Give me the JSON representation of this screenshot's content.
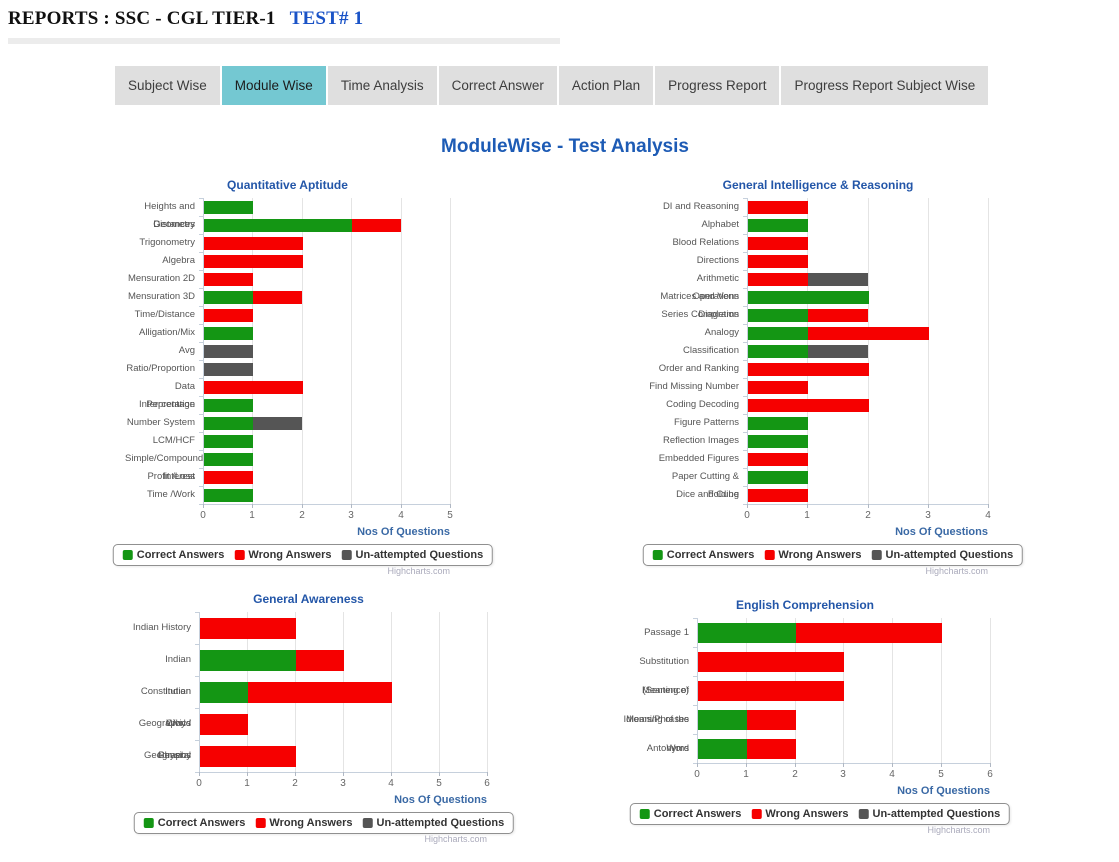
{
  "header": {
    "title": "REPORTS : SSC - CGL TIER-1",
    "test_label": "TEST# 1"
  },
  "tabs": [
    {
      "label": "Subject Wise",
      "active": false
    },
    {
      "label": "Module Wise",
      "active": true
    },
    {
      "label": "Time Analysis",
      "active": false
    },
    {
      "label": "Correct Answer",
      "active": false
    },
    {
      "label": "Action Plan",
      "active": false
    },
    {
      "label": "Progress Report",
      "active": false
    },
    {
      "label": "Progress Report Subject Wise",
      "active": false
    }
  ],
  "page_title": "ModuleWise - Test Analysis",
  "axis_label": "Nos Of Questions",
  "credit": "Highcharts.com",
  "colors": {
    "correct": "#149614",
    "wrong": "#f60000",
    "unattempted": "#555555",
    "accent_blue": "#2356a8",
    "tab_active": "#74c8d2"
  },
  "legend_labels": [
    "Correct Answers",
    "Wrong Answers",
    "Un-attempted Questions"
  ],
  "chart_data": [
    {
      "type": "bar",
      "orientation": "horizontal-stacked",
      "title": "Quantitative Aptitude",
      "xlabel": "Nos Of Questions",
      "xlim": [
        0,
        5
      ],
      "grid": true,
      "legend_position": "bottom",
      "categories": [
        "Heights and Distances",
        "Geometry",
        "Trigonometry",
        "Algebra",
        "Mensuration 2D",
        "Mensuration 3D",
        "Time/Distance",
        "Alligation/Mix",
        "Avg",
        "Ratio/Proportion",
        "Data Interpretation",
        "Percentage",
        "Number System",
        "LCM/HCF",
        "Simple/Compound Interest",
        "Profit /Loss",
        "Time /Work"
      ],
      "series": [
        {
          "name": "Correct Answers",
          "color_key": "correct",
          "values": [
            1,
            3,
            0,
            0,
            0,
            1,
            0,
            1,
            0,
            0,
            0,
            1,
            1,
            1,
            1,
            0,
            1
          ]
        },
        {
          "name": "Wrong Answers",
          "color_key": "wrong",
          "values": [
            0,
            1,
            2,
            2,
            1,
            1,
            1,
            0,
            0,
            0,
            2,
            0,
            0,
            0,
            0,
            1,
            0
          ]
        },
        {
          "name": "Un-attempted Questions",
          "color_key": "unattempted",
          "values": [
            0,
            0,
            0,
            0,
            0,
            0,
            0,
            0,
            1,
            1,
            0,
            0,
            1,
            0,
            0,
            0,
            0
          ]
        }
      ]
    },
    {
      "type": "bar",
      "orientation": "horizontal-stacked",
      "title": "General Intelligence & Reasoning",
      "xlabel": "Nos Of Questions",
      "xlim": [
        0,
        4
      ],
      "grid": true,
      "legend_position": "bottom",
      "categories": [
        "DI and Reasoning",
        "Alphabet",
        "Blood Relations",
        "Directions",
        "Arithmetic Operations",
        "Matrices and Venn Diagrams",
        "Series Completion",
        "Analogy",
        "Classification",
        "Order and Ranking",
        "Find Missing Number",
        "Coding Decoding",
        "Figure Patterns",
        "Reflection Images",
        "Embedded Figures",
        "Paper Cutting & Folding",
        "Dice and Cube"
      ],
      "series": [
        {
          "name": "Correct Answers",
          "color_key": "correct",
          "values": [
            0,
            1,
            0,
            0,
            0,
            2,
            1,
            1,
            1,
            0,
            0,
            0,
            1,
            1,
            0,
            1,
            0
          ]
        },
        {
          "name": "Wrong Answers",
          "color_key": "wrong",
          "values": [
            1,
            0,
            1,
            1,
            1,
            0,
            1,
            2,
            0,
            2,
            1,
            2,
            0,
            0,
            1,
            0,
            1
          ]
        },
        {
          "name": "Un-attempted Questions",
          "color_key": "unattempted",
          "values": [
            0,
            0,
            0,
            0,
            1,
            0,
            0,
            0,
            1,
            0,
            0,
            0,
            0,
            0,
            0,
            0,
            0
          ]
        }
      ]
    },
    {
      "type": "bar",
      "orientation": "horizontal-stacked",
      "title": "General Awareness",
      "xlabel": "Nos Of Questions",
      "xlim": [
        0,
        6
      ],
      "grid": true,
      "legend_position": "bottom",
      "categories": [
        "Indian History",
        "Indian Constitution Civics",
        "Indian Geography / General",
        "World Geography",
        "Physics"
      ],
      "series": [
        {
          "name": "Correct Answers",
          "color_key": "correct",
          "values": [
            0,
            2,
            1,
            0,
            0
          ]
        },
        {
          "name": "Wrong Answers",
          "color_key": "wrong",
          "values": [
            2,
            1,
            3,
            1,
            2
          ]
        },
        {
          "name": "Un-attempted Questions",
          "color_key": "unattempted",
          "values": [
            0,
            0,
            0,
            0,
            0
          ]
        }
      ]
    },
    {
      "type": "bar",
      "orientation": "horizontal-stacked",
      "title": "English Comprehension",
      "xlabel": "Nos Of Questions",
      "xlim": [
        0,
        6
      ],
      "grid": true,
      "legend_position": "bottom",
      "categories": [
        "Passage 1",
        "Substitution (Sentence)",
        "Meaning of Idioms/Phrases",
        "Meaning of the Word",
        "Antonyms"
      ],
      "series": [
        {
          "name": "Correct Answers",
          "color_key": "correct",
          "values": [
            2,
            0,
            0,
            1,
            1
          ]
        },
        {
          "name": "Wrong Answers",
          "color_key": "wrong",
          "values": [
            3,
            3,
            3,
            1,
            1
          ]
        },
        {
          "name": "Un-attempted Questions",
          "color_key": "unattempted",
          "values": [
            0,
            0,
            0,
            0,
            0
          ]
        }
      ]
    }
  ]
}
